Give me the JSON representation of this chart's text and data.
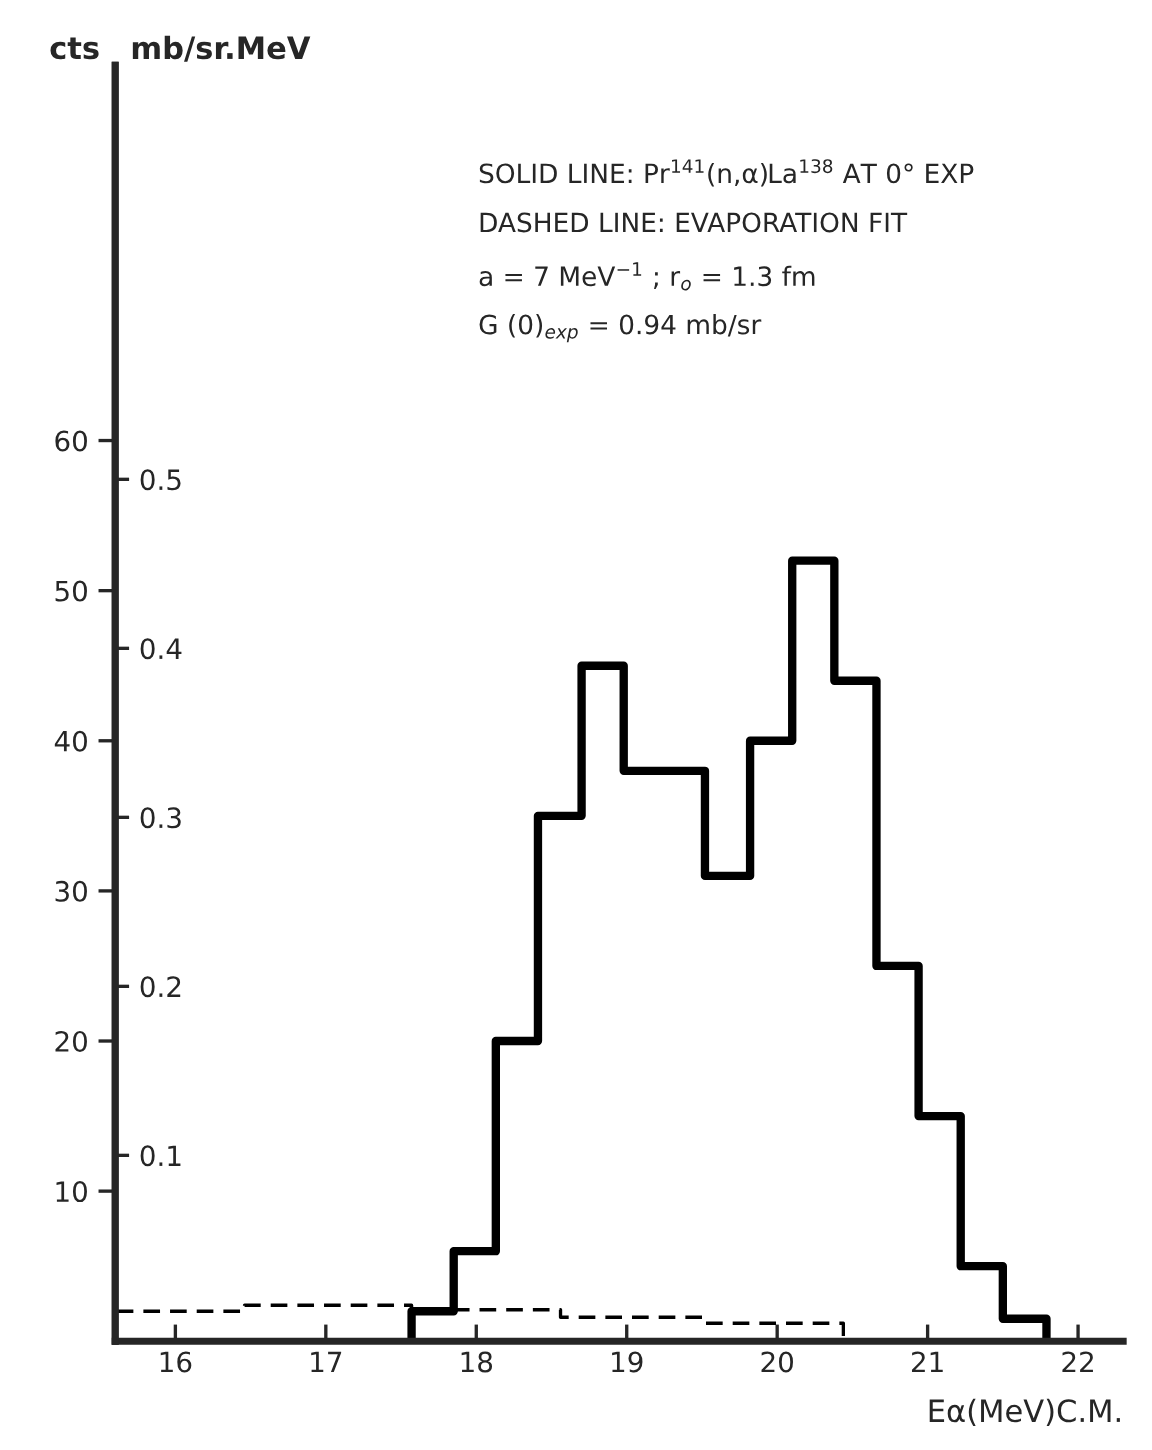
{
  "chart_data": {
    "type": "histogram",
    "xlabel": "Eα(MeV)C.M.",
    "ylabel": "cts",
    "y2label": "mb/sr.MeV",
    "annotations": [
      "SOLID LINE: Pr$^{141}$(n,α)La$^{138}$ AT 0° EXP",
      "DASHED LINE: EVAPORATION FIT",
      "a = 7 MeV$^{−1}$ ; r$_{o}$ = 1.3 fm",
      "G (0)$_{exp}$ = 0.94 mb/sr"
    ],
    "series": [
      {
        "color": "#000000",
        "bins": [
          17.57,
          17.85,
          18.13,
          18.41,
          18.7,
          18.98,
          19.25,
          19.52,
          19.82,
          20.1,
          20.38,
          20.66,
          20.94,
          21.22,
          21.5,
          21.79
        ],
        "values": [
          2,
          6,
          20,
          35,
          45,
          38,
          38,
          31,
          40,
          52,
          44,
          25,
          15,
          5,
          1.5
        ]
      },
      {
        "type": "step",
        "color": "#000000",
        "line_style": "dashed",
        "x": [
          15.61,
          16.46,
          17.57,
          18.56,
          19.51,
          20.44,
          20.44
        ],
        "values": [
          2.0,
          2.4,
          2.1,
          1.6,
          1.2,
          1.2,
          0
        ]
      }
    ],
    "xlim": [
      15.6,
      22.3
    ],
    "xticks": [
      16,
      17,
      18,
      19,
      20,
      21,
      22
    ],
    "ylim": [
      0,
      85
    ],
    "yticks": [
      10,
      20,
      30,
      40,
      50,
      60
    ],
    "y2lim": [
      -0.01,
      0.745
    ],
    "y2ticks": [
      {
        "value": 0.1,
        "label": "0.1"
      },
      {
        "value": 0.2,
        "label": "0.2"
      },
      {
        "value": 0.3,
        "label": "0.3"
      },
      {
        "value": 0.4,
        "label": "0.4"
      },
      {
        "value": 0.5,
        "label": "0.5"
      }
    ],
    "grid": false,
    "legend": false
  }
}
